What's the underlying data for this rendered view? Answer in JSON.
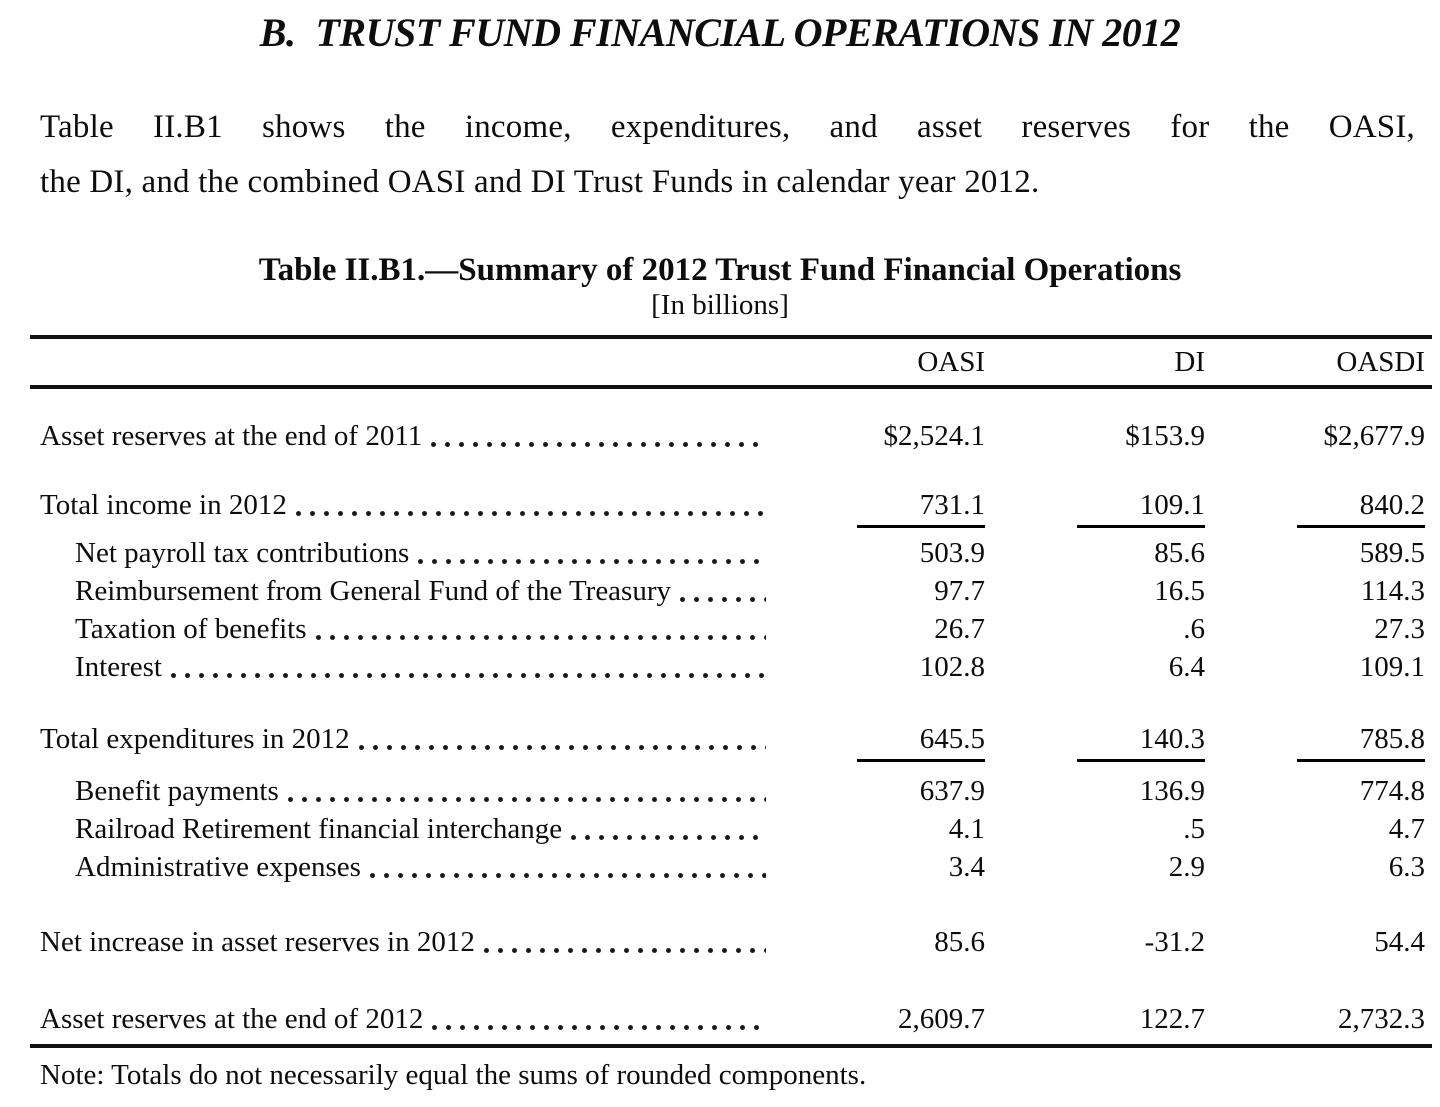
{
  "title": {
    "prefix": "B.",
    "text": "TRUST FUND FINANCIAL OPERATIONS IN 2012"
  },
  "intro": {
    "line1": "Table II.B1 shows the income, expenditures, and asset reserves for the OASI,",
    "line2": "the DI, and the combined OASI and DI Trust Funds in calendar year 2012."
  },
  "table": {
    "caption": "Table II.B1.—Summary of 2012 Trust Fund Financial Operations",
    "units": "[In billions]",
    "columns": {
      "oasi": "OASI",
      "di": "DI",
      "oasdi": "OASDI"
    },
    "rows": [
      {
        "label": "Asset reserves at the end of 2011",
        "oasi": "$2,524.1",
        "di": "$153.9",
        "oasdi": "$2,677.9"
      },
      {
        "label": "Total income in 2012",
        "oasi": "731.1",
        "di": "109.1",
        "oasdi": "840.2"
      },
      {
        "label": "Net payroll tax contributions",
        "oasi": "503.9",
        "di": "85.6",
        "oasdi": "589.5"
      },
      {
        "label": "Reimbursement from General Fund of the Treasury",
        "oasi": "97.7",
        "di": "16.5",
        "oasdi": "114.3"
      },
      {
        "label": "Taxation of benefits",
        "oasi": "26.7",
        "di": ".6",
        "oasdi": "27.3"
      },
      {
        "label": "Interest",
        "oasi": "102.8",
        "di": "6.4",
        "oasdi": "109.1"
      },
      {
        "label": "Total expenditures in 2012",
        "oasi": "645.5",
        "di": "140.3",
        "oasdi": "785.8"
      },
      {
        "label": "Benefit payments",
        "oasi": "637.9",
        "di": "136.9",
        "oasdi": "774.8"
      },
      {
        "label": "Railroad Retirement financial interchange",
        "oasi": "4.1",
        "di": ".5",
        "oasdi": "4.7"
      },
      {
        "label": "Administrative expenses",
        "oasi": "3.4",
        "di": "2.9",
        "oasdi": "6.3"
      },
      {
        "label": "Net increase in asset reserves in 2012",
        "oasi": "85.6",
        "di": "-31.2",
        "oasdi": "54.4"
      },
      {
        "label": "Asset reserves at the end of 2012",
        "oasi": "2,609.7",
        "di": "122.7",
        "oasdi": "2,732.3"
      }
    ]
  },
  "note": "Note: Totals do not necessarily equal the sums of rounded components."
}
